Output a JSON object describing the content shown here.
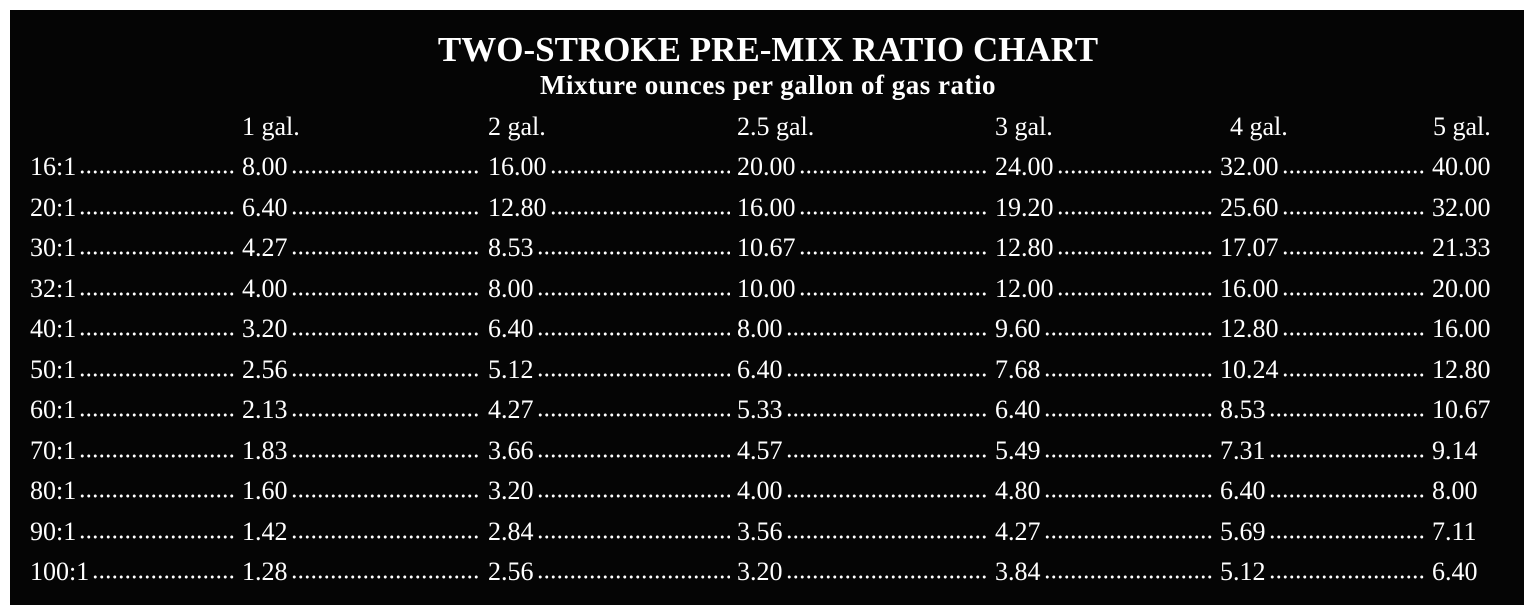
{
  "title": "TWO-STROKE PRE-MIX RATIO CHART",
  "subtitle": "Mixture ounces per gallon of gas ratio",
  "table": {
    "columns": [
      "1 gal.",
      "2 gal.",
      "2.5 gal.",
      "3 gal.",
      "4 gal.",
      "5 gal."
    ],
    "rows": [
      [
        "16:1",
        "8.00",
        "16.00",
        "20.00",
        "24.00",
        "32.00",
        "40.00"
      ],
      [
        "20:1",
        "6.40",
        "12.80",
        "16.00",
        "19.20",
        "25.60",
        "32.00"
      ],
      [
        "30:1",
        "4.27",
        "8.53",
        "10.67",
        "12.80",
        "17.07",
        "21.33"
      ],
      [
        "32:1",
        "4.00",
        "8.00",
        "10.00",
        "12.00",
        "16.00",
        "20.00"
      ],
      [
        "40:1",
        "3.20",
        "6.40",
        "8.00",
        "9.60",
        "12.80",
        "16.00"
      ],
      [
        "50:1",
        "2.56",
        "5.12",
        "6.40",
        "7.68",
        "10.24",
        "12.80"
      ],
      [
        "60:1",
        "2.13",
        "4.27",
        "5.33",
        "6.40",
        "8.53",
        "10.67"
      ],
      [
        "70:1",
        "1.83",
        "3.66",
        "4.57",
        "5.49",
        "7.31",
        "9.14"
      ],
      [
        "80:1",
        "1.60",
        "3.20",
        "4.00",
        "4.80",
        "6.40",
        "8.00"
      ],
      [
        "90:1",
        "1.42",
        "2.84",
        "3.56",
        "4.27",
        "5.69",
        "7.11"
      ],
      [
        "100:1",
        "1.28",
        "2.56",
        "3.20",
        "3.84",
        "5.12",
        "6.40"
      ]
    ]
  }
}
